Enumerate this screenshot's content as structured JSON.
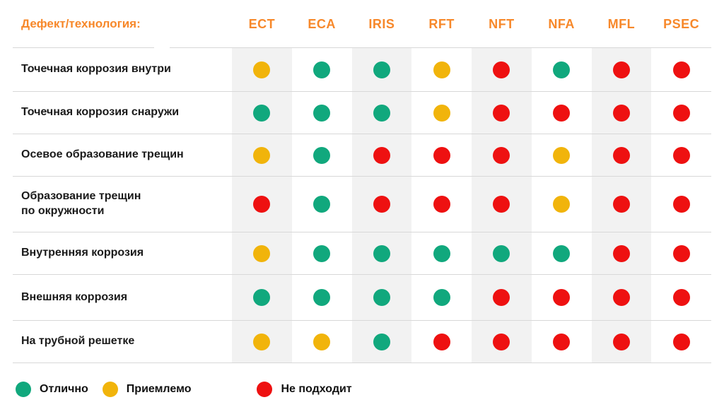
{
  "chart_data": {
    "type": "table",
    "corner_label": "Дефект/технология:",
    "columns": [
      "ECT",
      "ECA",
      "IRIS",
      "RFT",
      "NFT",
      "NFA",
      "MFL",
      "PSEC"
    ],
    "rows": [
      {
        "label": "Точечная коррозия внутри",
        "ratings": [
          "acceptable",
          "excellent",
          "excellent",
          "acceptable",
          "unsuitable",
          "excellent",
          "unsuitable",
          "unsuitable"
        ]
      },
      {
        "label": "Точечная коррозия снаружи",
        "ratings": [
          "excellent",
          "excellent",
          "excellent",
          "acceptable",
          "unsuitable",
          "unsuitable",
          "unsuitable",
          "unsuitable"
        ]
      },
      {
        "label": "Осевое образование трещин",
        "ratings": [
          "acceptable",
          "excellent",
          "unsuitable",
          "unsuitable",
          "unsuitable",
          "acceptable",
          "unsuitable",
          "unsuitable"
        ]
      },
      {
        "label": "Образование трещин\nпо окружности",
        "ratings": [
          "unsuitable",
          "excellent",
          "unsuitable",
          "unsuitable",
          "unsuitable",
          "acceptable",
          "unsuitable",
          "unsuitable"
        ]
      },
      {
        "label": "Внутренняя коррозия",
        "ratings": [
          "acceptable",
          "excellent",
          "excellent",
          "excellent",
          "excellent",
          "excellent",
          "unsuitable",
          "unsuitable"
        ]
      },
      {
        "label": "Внешняя коррозия",
        "ratings": [
          "excellent",
          "excellent",
          "excellent",
          "excellent",
          "unsuitable",
          "unsuitable",
          "unsuitable",
          "unsuitable"
        ]
      },
      {
        "label": "На трубной решетке",
        "ratings": [
          "acceptable",
          "acceptable",
          "excellent",
          "unsuitable",
          "unsuitable",
          "unsuitable",
          "unsuitable",
          "unsuitable"
        ]
      }
    ],
    "legend": [
      {
        "status": "excellent",
        "label": "Отлично",
        "color": "#11A87D"
      },
      {
        "status": "acceptable",
        "label": "Приемлемо",
        "color": "#F1B40B"
      },
      {
        "status": "unsuitable",
        "label": "Не подходит",
        "color": "#EE1111"
      }
    ],
    "striped_columns": [
      0,
      2,
      4,
      6
    ],
    "colors": {
      "accent_orange": "#F7882A",
      "stripe_gray": "#F2F2F2",
      "divider_gray": "#D8D8D8",
      "text_black": "#1A1A1A"
    }
  }
}
